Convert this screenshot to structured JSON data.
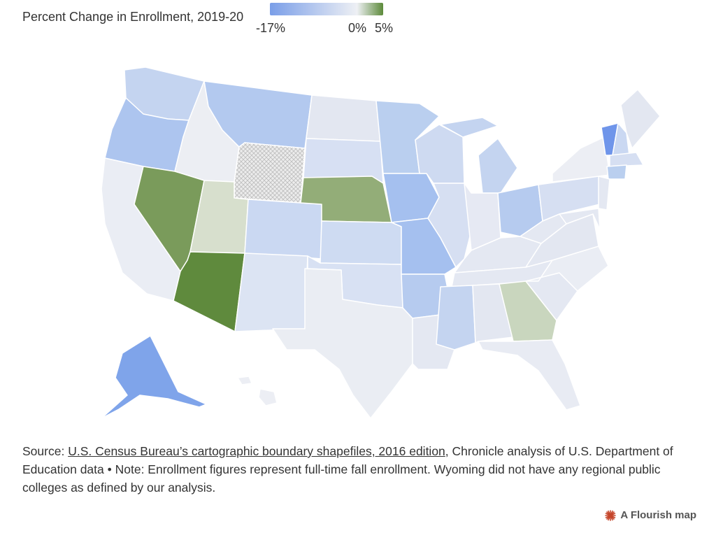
{
  "legend": {
    "title": "Percent Change in Enrollment, 2019-20",
    "min_label": "-17%",
    "zero_label": "0%",
    "max_label": "5%",
    "color_min": "#7a9ee8",
    "color_zero": "#eef0f4",
    "color_max": "#5c8a3a"
  },
  "map": {
    "states": [
      {
        "id": "WA",
        "color": "#c4d4f0"
      },
      {
        "id": "OR",
        "color": "#adc5ef"
      },
      {
        "id": "CA",
        "color": "#eaedf4"
      },
      {
        "id": "ID",
        "color": "#eceef3"
      },
      {
        "id": "NV",
        "color": "#7a9b5b"
      },
      {
        "id": "MT",
        "color": "#b3c9ef"
      },
      {
        "id": "WY",
        "color": "#e4e4e4"
      },
      {
        "id": "UT",
        "color": "#d7dfcd"
      },
      {
        "id": "AZ",
        "color": "#5f8a3d"
      },
      {
        "id": "CO",
        "color": "#cad8f2"
      },
      {
        "id": "NM",
        "color": "#dce4f3"
      },
      {
        "id": "ND",
        "color": "#e3e7f1"
      },
      {
        "id": "SD",
        "color": "#d7e0f3"
      },
      {
        "id": "NE",
        "color": "#93ad78"
      },
      {
        "id": "KS",
        "color": "#cedbf2"
      },
      {
        "id": "OK",
        "color": "#d8e1f3"
      },
      {
        "id": "TX",
        "color": "#eaedf3"
      },
      {
        "id": "MN",
        "color": "#bacfef"
      },
      {
        "id": "IA",
        "color": "#a5c0ef"
      },
      {
        "id": "MO",
        "color": "#a5c0ef"
      },
      {
        "id": "AR",
        "color": "#b6cbef"
      },
      {
        "id": "LA",
        "color": "#e4e8f2"
      },
      {
        "id": "WI",
        "color": "#cedaf1"
      },
      {
        "id": "IL",
        "color": "#d6dff2"
      },
      {
        "id": "MI",
        "color": "#c4d4f0"
      },
      {
        "id": "IN",
        "color": "#e6e9f3"
      },
      {
        "id": "OH",
        "color": "#b6cbef"
      },
      {
        "id": "KY",
        "color": "#e4e8f2"
      },
      {
        "id": "TN",
        "color": "#e4e8f2"
      },
      {
        "id": "MS",
        "color": "#c4d4f0"
      },
      {
        "id": "AL",
        "color": "#e3e7f1"
      },
      {
        "id": "GA",
        "color": "#c9d6be"
      },
      {
        "id": "FL",
        "color": "#e8ebf3"
      },
      {
        "id": "SC",
        "color": "#e4e8f2"
      },
      {
        "id": "NC",
        "color": "#eaedf4"
      },
      {
        "id": "VA",
        "color": "#e3e7f1"
      },
      {
        "id": "WV",
        "color": "#e4e8f2"
      },
      {
        "id": "PA",
        "color": "#d6dff2"
      },
      {
        "id": "NY",
        "color": "#eceef4"
      },
      {
        "id": "VT",
        "color": "#6f95ea"
      },
      {
        "id": "NH",
        "color": "#cad8f2"
      },
      {
        "id": "ME",
        "color": "#e3e7f1"
      },
      {
        "id": "MA",
        "color": "#d6dff2"
      },
      {
        "id": "CT",
        "color": "#bacfef"
      },
      {
        "id": "NJ",
        "color": "#e4e8f2"
      },
      {
        "id": "MD",
        "color": "#e4e8f2"
      },
      {
        "id": "AK",
        "color": "#7fa4ea"
      },
      {
        "id": "HI",
        "color": "#eceef4"
      }
    ]
  },
  "source": {
    "prefix": "Source: ",
    "link_text": "U.S. Census Bureau’s cartographic boundary shapefiles, 2016 edition",
    "rest": ", Chronicle analysis of U.S. Department of Education data • Note: Enrollment figures represent full-time fall enrollment. Wyoming did not have any regional public colleges as defined by our analysis."
  },
  "footer": {
    "flourish_label": "A Flourish map",
    "flourish_color": "#c5452a"
  }
}
